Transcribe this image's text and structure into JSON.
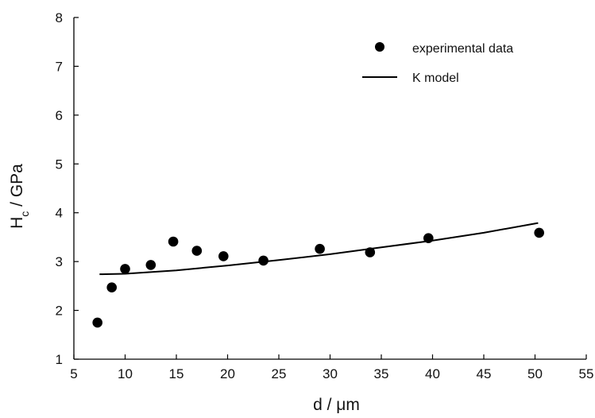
{
  "chart_data": {
    "type": "scatter",
    "xlabel": "d / μm",
    "ylabel_main": "H",
    "ylabel_sub": "c",
    "ylabel_rest": " / GPa",
    "xlim": [
      5,
      55
    ],
    "ylim": [
      1,
      8
    ],
    "xticks": [
      5,
      10,
      15,
      20,
      25,
      30,
      35,
      40,
      45,
      50,
      55
    ],
    "yticks": [
      1,
      2,
      3,
      4,
      5,
      6,
      7,
      8
    ],
    "grid": false,
    "legend_position": "top-right",
    "series": [
      {
        "name": "experimental data",
        "kind": "scatter",
        "marker": "filled-circle",
        "color": "#000000",
        "x": [
          7.3,
          8.7,
          10.0,
          12.5,
          14.7,
          17.0,
          19.6,
          23.5,
          29.0,
          33.9,
          39.6,
          50.4
        ],
        "y": [
          1.75,
          2.47,
          2.85,
          2.93,
          3.41,
          3.22,
          3.11,
          3.02,
          3.26,
          3.19,
          3.48,
          3.59
        ]
      },
      {
        "name": "K model",
        "kind": "line",
        "color": "#000000",
        "x": [
          7.5,
          10,
          15,
          20,
          25,
          30,
          35,
          40,
          45,
          50.3
        ],
        "y": [
          2.74,
          2.75,
          2.82,
          2.92,
          3.03,
          3.15,
          3.29,
          3.43,
          3.59,
          3.79
        ]
      }
    ]
  }
}
